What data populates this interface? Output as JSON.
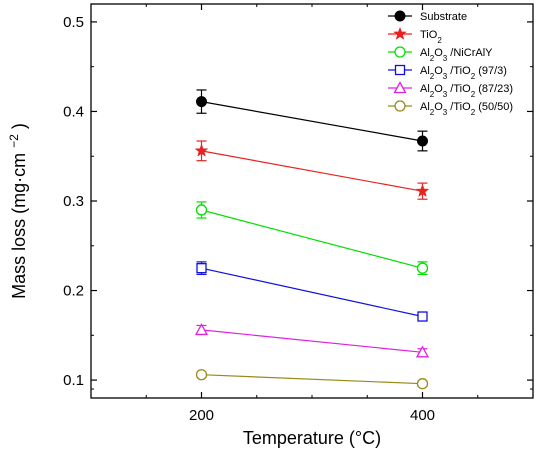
{
  "chart_data": {
    "type": "line",
    "xlabel": "Temperature (°C)",
    "ylabel_main": "Mass loss (mg·cm",
    "ylabel_sup": "−2",
    "ylabel_close": ")",
    "x": [
      200,
      400
    ],
    "xlim": [
      100,
      500
    ],
    "ylim": [
      0.08,
      0.52
    ],
    "xticks": [
      200,
      400
    ],
    "xtick_labels": [
      "200",
      "400"
    ],
    "yticks": [
      0.1,
      0.2,
      0.3,
      0.4,
      0.5
    ],
    "ytick_labels": [
      "0.1",
      "0.2",
      "0.3",
      "0.4",
      "0.5"
    ],
    "grid": false,
    "legend_position": "top-right",
    "series": [
      {
        "name": "Substrate",
        "legend": [
          [
            "Substrate",
            ""
          ]
        ],
        "values": [
          0.411,
          0.367
        ],
        "errors": [
          0.013,
          0.011
        ],
        "color": "#000000",
        "marker": "circle-filled"
      },
      {
        "name": "TiO2",
        "legend": [
          [
            "TiO",
            ""
          ],
          [
            "2",
            "sub"
          ]
        ],
        "values": [
          0.356,
          0.311
        ],
        "errors": [
          0.011,
          0.009
        ],
        "color": "#e8231f",
        "marker": "star"
      },
      {
        "name": "Al2O3/NiCrAlY",
        "legend": [
          [
            "Al",
            ""
          ],
          [
            "2",
            "sub"
          ],
          [
            "O",
            ""
          ],
          [
            "3",
            "sub"
          ],
          [
            " /NiCrAlY",
            ""
          ]
        ],
        "values": [
          0.29,
          0.225
        ],
        "errors": [
          0.009,
          0.007
        ],
        "color": "#00e000",
        "marker": "circle-open"
      },
      {
        "name": "Al2O3/TiO2 (97/3)",
        "legend": [
          [
            "Al",
            ""
          ],
          [
            "2",
            "sub"
          ],
          [
            "O",
            ""
          ],
          [
            "3",
            "sub"
          ],
          [
            " /TiO",
            ""
          ],
          [
            "2",
            "sub"
          ],
          [
            " (97/3)",
            ""
          ]
        ],
        "values": [
          0.225,
          0.171
        ],
        "errors": [
          0.007,
          0.004
        ],
        "color": "#1010e0",
        "marker": "square-open"
      },
      {
        "name": "Al2O3/TiO2 (87/23)",
        "legend": [
          [
            "Al",
            ""
          ],
          [
            "2",
            "sub"
          ],
          [
            "O",
            ""
          ],
          [
            "3",
            "sub"
          ],
          [
            " /TiO",
            ""
          ],
          [
            "2",
            "sub"
          ],
          [
            " (87/23)",
            ""
          ]
        ],
        "values": [
          0.156,
          0.131
        ],
        "errors": [
          0.005,
          0.004
        ],
        "color": "#e020e0",
        "marker": "triangle-open"
      },
      {
        "name": "Al2O3/TiO2 (50/50)",
        "legend": [
          [
            "Al",
            ""
          ],
          [
            "2",
            "sub"
          ],
          [
            "O",
            ""
          ],
          [
            "3",
            "sub"
          ],
          [
            " /TiO",
            ""
          ],
          [
            "2",
            "sub"
          ],
          [
            " (50/50)",
            ""
          ]
        ],
        "values": [
          0.106,
          0.096
        ],
        "errors": [
          0.003,
          0.003
        ],
        "color": "#9a8a1a",
        "marker": "circle-open"
      }
    ]
  }
}
